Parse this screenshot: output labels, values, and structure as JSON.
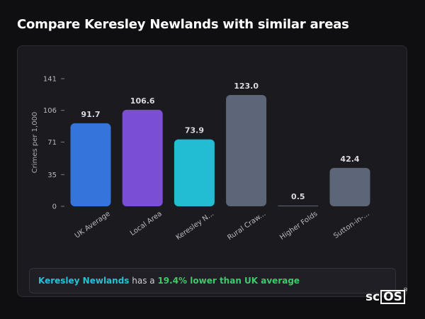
{
  "page": {
    "title": "Compare Keresley Newlands with similar areas"
  },
  "chart_data": {
    "type": "bar",
    "ylabel": "Crimes per 1,000",
    "yticks": [
      0,
      35,
      71,
      106,
      141
    ],
    "ylim": [
      0,
      141
    ],
    "grid": false,
    "categories": [
      "UK Average",
      "Local Area",
      "Keresley N...",
      "Rural Craw...",
      "Higher Folds",
      "Sutton-in-..."
    ],
    "values": [
      91.7,
      106.6,
      73.9,
      123.0,
      0.5,
      42.4
    ],
    "value_labels": [
      "91.7",
      "106.6",
      "73.9",
      "123.0",
      "0.5",
      "42.4"
    ],
    "colors": [
      "#3575db",
      "#7a4fd6",
      "#22bcd3",
      "#5d6678",
      "#5d6678",
      "#5d6678"
    ]
  },
  "summary": {
    "area": "Keresley Newlands",
    "middle": " has a ",
    "comparison": "19.4% lower than UK average"
  },
  "logo": {
    "left": "sc",
    "box": "OS",
    "mark": "®"
  }
}
